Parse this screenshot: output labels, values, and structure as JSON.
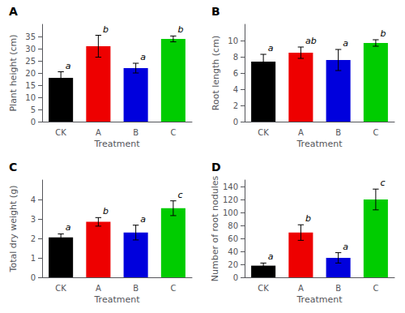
{
  "chart_data": [
    {
      "type": "bar",
      "title": "A",
      "xlabel": "Treatment",
      "ylabel": "Plant height (cm)",
      "categories": [
        "CK",
        "A",
        "B",
        "C"
      ],
      "values": [
        18.0,
        31.0,
        22.0,
        34.0
      ],
      "errors": [
        2.5,
        4.5,
        2.0,
        1.2
      ],
      "annotations": [
        "a",
        "b",
        "a",
        "b"
      ],
      "colors": [
        "#000000",
        "#ee0000",
        "#0000dd",
        "#00cc00"
      ],
      "ylim": [
        0,
        40
      ],
      "yticks": [
        0,
        5,
        10,
        15,
        20,
        25,
        30,
        35
      ],
      "grid": false
    },
    {
      "type": "bar",
      "title": "B",
      "xlabel": "Treatment",
      "ylabel": "Root length (cm)",
      "categories": [
        "CK",
        "A",
        "B",
        "C"
      ],
      "values": [
        7.4,
        8.5,
        7.6,
        9.7
      ],
      "errors": [
        0.9,
        0.7,
        1.3,
        0.4
      ],
      "annotations": [
        "a",
        "ab",
        "a",
        "b"
      ],
      "colors": [
        "#000000",
        "#ee0000",
        "#0000dd",
        "#00cc00"
      ],
      "ylim": [
        0,
        12
      ],
      "yticks": [
        0,
        2,
        4,
        6,
        8,
        10
      ],
      "grid": false
    },
    {
      "type": "bar",
      "title": "C",
      "xlabel": "Treatment",
      "ylabel": "Total dry weight (g)",
      "categories": [
        "CK",
        "A",
        "B",
        "C"
      ],
      "values": [
        2.05,
        2.85,
        2.3,
        3.55
      ],
      "errors": [
        0.18,
        0.22,
        0.38,
        0.38
      ],
      "annotations": [
        "a",
        "b",
        "a",
        "c"
      ],
      "colors": [
        "#000000",
        "#ee0000",
        "#0000dd",
        "#00cc00"
      ],
      "ylim": [
        0,
        5
      ],
      "yticks": [
        0,
        1,
        2,
        3,
        4
      ],
      "grid": false
    },
    {
      "type": "bar",
      "title": "D",
      "xlabel": "Treatment",
      "ylabel": "Number of root nodules",
      "categories": [
        "CK",
        "A",
        "B",
        "C"
      ],
      "values": [
        18.0,
        69.0,
        30.0,
        120.0
      ],
      "errors": [
        4.0,
        12.0,
        8.0,
        16.0
      ],
      "annotations": [
        "a",
        "b",
        "a",
        "c"
      ],
      "colors": [
        "#000000",
        "#ee0000",
        "#0000dd",
        "#00cc00"
      ],
      "ylim": [
        0,
        150
      ],
      "yticks": [
        0,
        20,
        40,
        60,
        80,
        100,
        120,
        140
      ],
      "grid": false
    }
  ]
}
